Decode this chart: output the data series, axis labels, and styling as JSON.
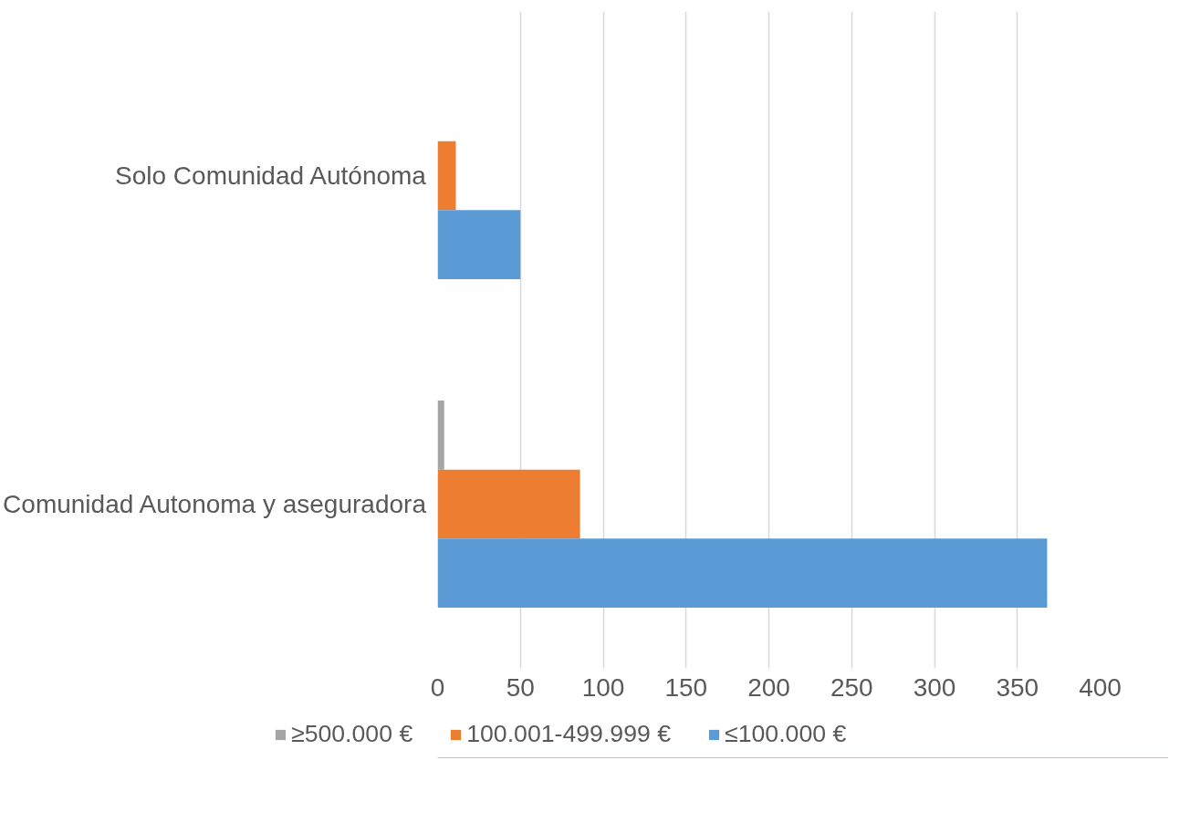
{
  "chart_data": {
    "type": "bar",
    "orientation": "horizontal",
    "categories": [
      "Solo Comunidad Autónoma",
      "Comunidad Autonoma y aseguradora"
    ],
    "series": [
      {
        "name": "≥500.000 €",
        "color": "#a5a5a5",
        "values": [
          0,
          4
        ]
      },
      {
        "name": "100.001-499.999 €",
        "color": "#ed7d31",
        "values": [
          11,
          86
        ]
      },
      {
        "name": "≤100.000 €",
        "color": "#5b9bd5",
        "values": [
          50,
          368
        ]
      }
    ],
    "xlim": [
      0,
      400
    ],
    "xticks": [
      0,
      50,
      100,
      150,
      200,
      250,
      300,
      350,
      400
    ],
    "grid": "x",
    "legend": "bottom"
  }
}
